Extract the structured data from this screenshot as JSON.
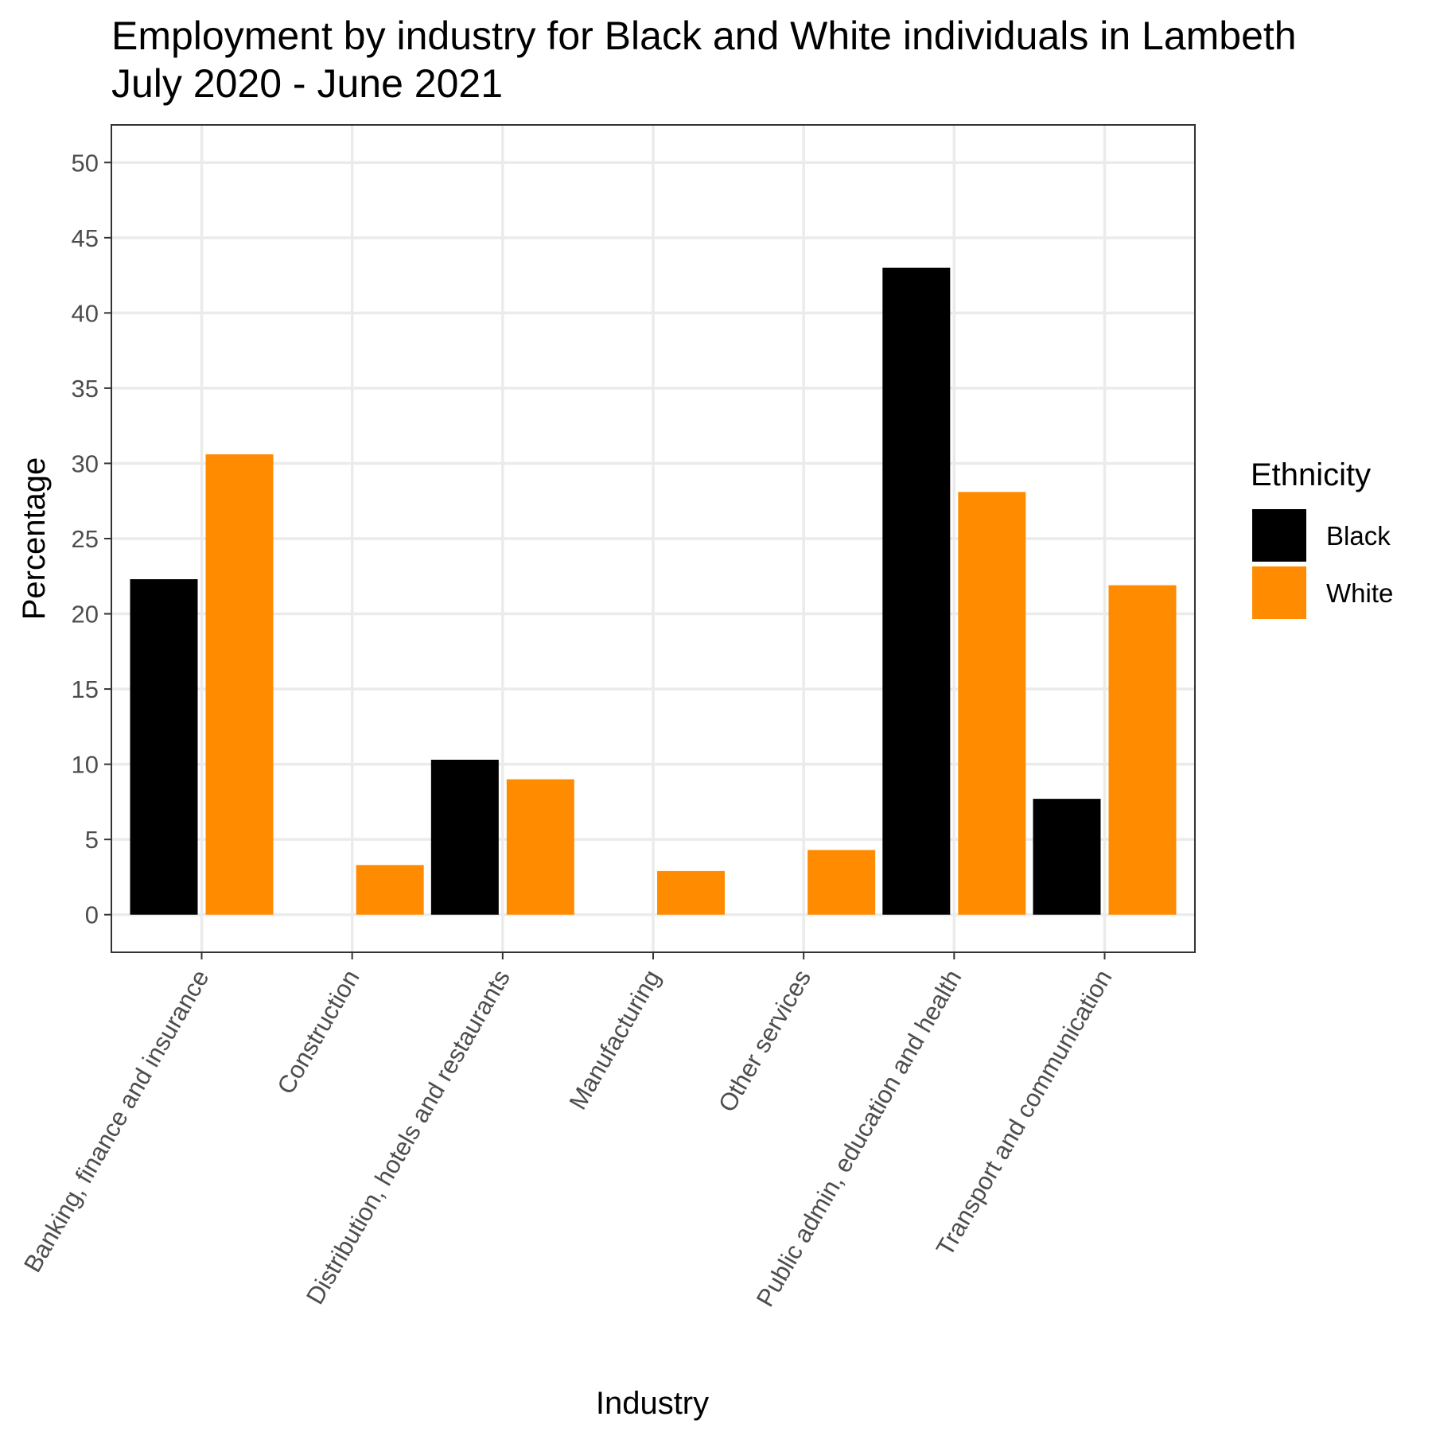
{
  "chart_data": {
    "type": "bar",
    "title": "Employment by industry for Black and White individuals in Lambeth",
    "subtitle": "July 2020 - June 2021",
    "xlabel": "Industry",
    "ylabel": "Percentage",
    "ylim": [
      -2.5,
      52.5
    ],
    "yticks": [
      0,
      5,
      10,
      15,
      20,
      25,
      30,
      35,
      40,
      45,
      50
    ],
    "grid": true,
    "legend": {
      "title": "Ethnicity",
      "position": "right"
    },
    "bars": [
      {
        "category": "Banking, finance and insurance",
        "series": "Black",
        "value": 22.3
      },
      {
        "category": "Banking, finance and insurance",
        "series": "White",
        "value": 30.6
      },
      {
        "category": "Construction",
        "series": "White",
        "value": 3.3
      },
      {
        "category": "Distribution, hotels and restaurants",
        "series": "Black",
        "value": 10.3
      },
      {
        "category": "Distribution, hotels and restaurants",
        "series": "White",
        "value": 9.0
      },
      {
        "category": "Manufacturing",
        "series": "White",
        "value": 2.9
      },
      {
        "category": "Other services",
        "series": "White",
        "value": 4.3
      },
      {
        "category": "Public admin, education and health",
        "series": "Black",
        "value": 43.0
      },
      {
        "category": "Public admin, education and health",
        "series": "White",
        "value": 28.1
      },
      {
        "category": "Transport and communication",
        "series": "Black",
        "value": 7.7
      },
      {
        "category": "Transport and communication",
        "series": "White",
        "value": 21.9
      }
    ],
    "categories": [
      "Banking, finance and insurance",
      "Construction",
      "Distribution, hotels and restaurants",
      "Manufacturing",
      "Other services",
      "Public admin, education and health",
      "Transport and communication"
    ],
    "series": [
      {
        "name": "Black",
        "color": "#000000"
      },
      {
        "name": "White",
        "color": "#FF8C00"
      }
    ]
  }
}
